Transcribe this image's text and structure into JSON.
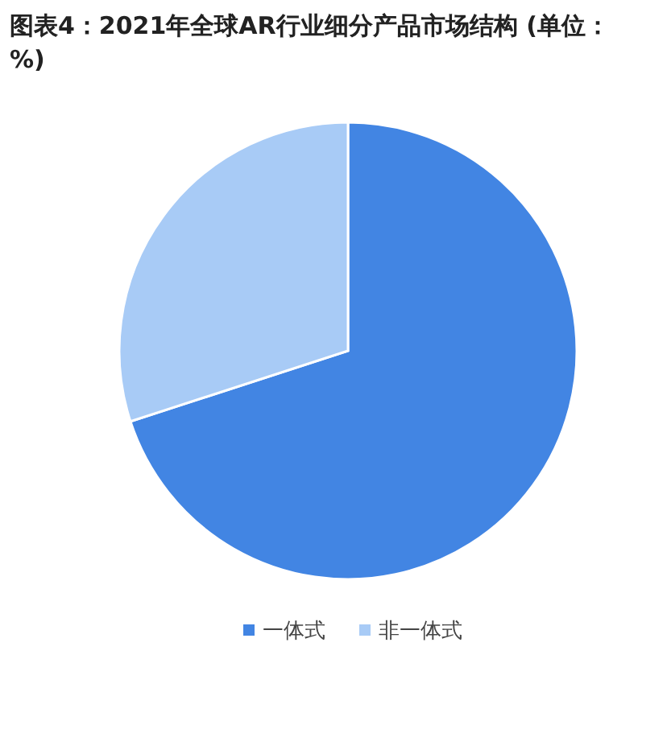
{
  "chart_data": {
    "type": "pie",
    "title": "图表4：2021年全球AR行业细分产品市场结构 (单位：%)",
    "categories": [
      "一体式",
      "非一体式"
    ],
    "values": [
      70,
      30
    ],
    "colors": [
      "#4285e3",
      "#a8cbf6"
    ],
    "legend": "bottom"
  }
}
